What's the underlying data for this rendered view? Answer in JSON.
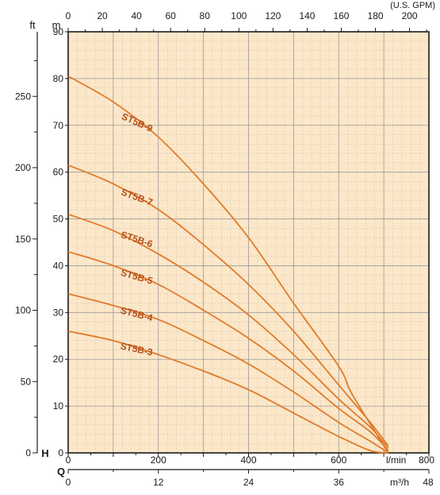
{
  "chart_data": {
    "type": "line",
    "axes": {
      "head_m": {
        "unit": "m",
        "range": [
          0,
          90
        ],
        "ticks": [
          0,
          10,
          20,
          30,
          40,
          50,
          60,
          70,
          80,
          90
        ]
      },
      "head_ft": {
        "unit": "ft",
        "range": [
          0,
          295.3
        ],
        "ticks": [
          0,
          50,
          100,
          150,
          200,
          250
        ]
      },
      "flow_lmin": {
        "unit": "l/min",
        "range": [
          0,
          800
        ],
        "ticks": [
          0,
          200,
          400,
          600,
          800
        ]
      },
      "flow_m3h": {
        "unit": "m³/h",
        "range": [
          0,
          48
        ],
        "ticks": [
          0,
          12,
          24,
          36,
          48
        ]
      },
      "flow_gpm": {
        "unit": "(U.S. GPM)",
        "range": [
          0,
          211.3
        ],
        "ticks": [
          0,
          20,
          40,
          60,
          80,
          100,
          120,
          140,
          160,
          180,
          200
        ]
      }
    },
    "axis_letters": {
      "head": "H",
      "flow": "Q"
    },
    "grid": true,
    "colors": {
      "curve": "#e07b2a",
      "label": "#b5501c",
      "background": "#fce7c8",
      "grid": "#bdbdbd"
    },
    "series": [
      {
        "name": "ST5B-9",
        "x": [
          0,
          100,
          200,
          300,
          400,
          500,
          600,
          630,
          710
        ],
        "y": [
          80.5,
          75,
          67.5,
          57.5,
          46,
          32,
          18.5,
          12.5,
          0
        ]
      },
      {
        "name": "ST5B-7",
        "x": [
          0,
          100,
          200,
          300,
          400,
          500,
          600,
          670,
          710
        ],
        "y": [
          61.5,
          57.5,
          52,
          44.5,
          36,
          26,
          14.5,
          6.5,
          1.5
        ]
      },
      {
        "name": "ST5B-6",
        "x": [
          0,
          100,
          200,
          300,
          400,
          500,
          600,
          670,
          710
        ],
        "y": [
          51,
          47.5,
          42.5,
          36.5,
          29.5,
          21,
          11.5,
          5.5,
          1
        ]
      },
      {
        "name": "ST5B-5",
        "x": [
          0,
          100,
          200,
          300,
          400,
          500,
          600,
          670,
          710
        ],
        "y": [
          43,
          40,
          36,
          30.5,
          24.5,
          17.5,
          9.5,
          4.5,
          0.5
        ]
      },
      {
        "name": "ST5B-4",
        "x": [
          0,
          100,
          200,
          300,
          400,
          500,
          600,
          670,
          710
        ],
        "y": [
          34,
          31.5,
          28.5,
          24,
          19,
          13,
          6.5,
          2.5,
          0
        ]
      },
      {
        "name": "ST5B-3",
        "x": [
          0,
          100,
          200,
          300,
          400,
          500,
          600,
          670,
          710
        ],
        "y": [
          26,
          24,
          21,
          17.5,
          13.5,
          8.5,
          3.5,
          0.5,
          0
        ]
      }
    ],
    "curve_labels": [
      {
        "series": "ST5B-9",
        "text": "ST5B-9",
        "at_x": 150,
        "at_y": 70,
        "angle_deg": 24
      },
      {
        "series": "ST5B-7",
        "text": "ST5B-7",
        "at_x": 150,
        "at_y": 54,
        "angle_deg": 20
      },
      {
        "series": "ST5B-6",
        "text": "ST5B-6",
        "at_x": 150,
        "at_y": 45,
        "angle_deg": 18
      },
      {
        "series": "ST5B-5",
        "text": "ST5B-5",
        "at_x": 150,
        "at_y": 37,
        "angle_deg": 16
      },
      {
        "series": "ST5B-4",
        "text": "ST5B-4",
        "at_x": 150,
        "at_y": 29,
        "angle_deg": 14
      },
      {
        "series": "ST5B-3",
        "text": "ST5B-3",
        "at_x": 150,
        "at_y": 21.5,
        "angle_deg": 12
      }
    ]
  }
}
